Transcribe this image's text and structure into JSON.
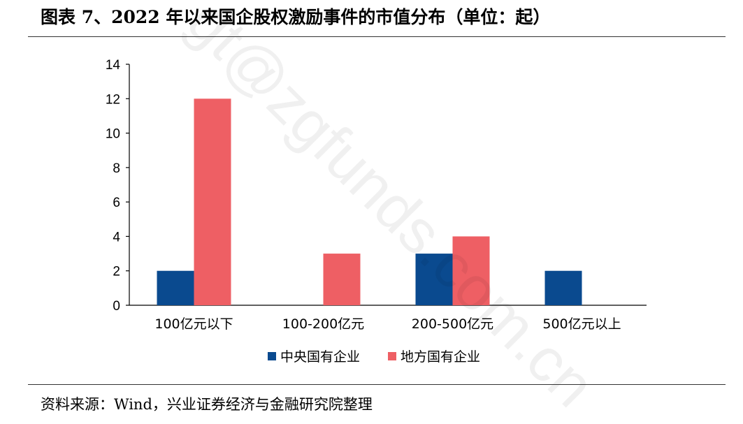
{
  "title": "图表 7、2022 年以来国企股权激励事件的市值分布（单位：起）",
  "source": "资料来源：Wind，兴业证券经济与金融研究院整理",
  "watermark": "gt@zgfunds.com.cn",
  "colors": {
    "central": "#0a4a8f",
    "local": "#ee5f64",
    "axis": "#000000"
  },
  "chart_data": {
    "type": "bar",
    "categories": [
      "100亿元以下",
      "100-200亿元",
      "200-500亿元",
      "500亿元以上"
    ],
    "series": [
      {
        "name": "中央国有企业",
        "values": [
          2,
          0,
          3,
          2
        ]
      },
      {
        "name": "地方国有企业",
        "values": [
          12,
          3,
          4,
          0
        ]
      }
    ],
    "ylim": [
      0,
      14
    ],
    "yticks": [
      0,
      2,
      4,
      6,
      8,
      10,
      12,
      14
    ],
    "grid": false,
    "legend": "bottom"
  }
}
